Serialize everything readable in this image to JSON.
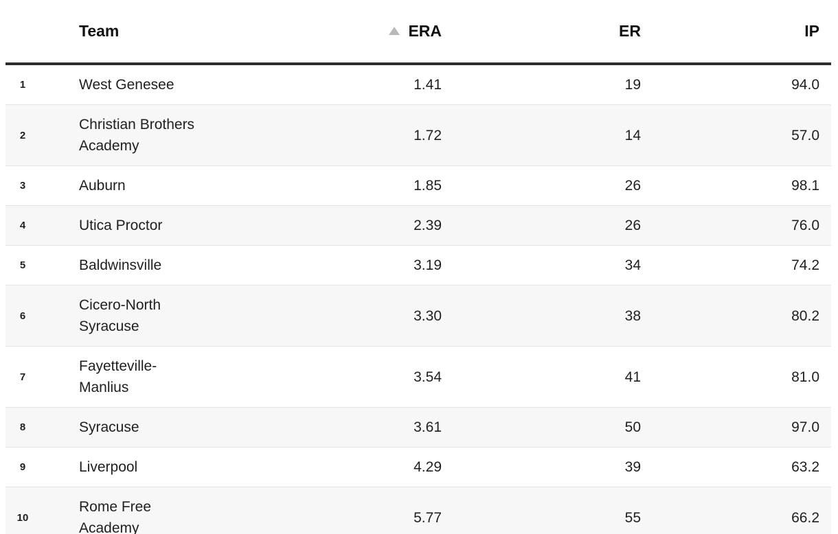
{
  "colors": {
    "stripe": "#f7f7f7",
    "divider": "#e4e4e4",
    "header-border": "#2e2e2e",
    "text": "#1f1f1f",
    "sort-icon": "#b9b9b9",
    "bg": "#ffffff"
  },
  "table": {
    "columns": [
      {
        "key": "rank",
        "label": ""
      },
      {
        "key": "team",
        "label": "Team"
      },
      {
        "key": "era",
        "label": "ERA",
        "sorted": true,
        "sort_direction": "asc",
        "sort_icon": "triangle-up-icon"
      },
      {
        "key": "er",
        "label": "ER"
      },
      {
        "key": "ip",
        "label": "IP"
      }
    ],
    "rows": [
      {
        "rank": "1",
        "team": "West Genesee",
        "era": "1.41",
        "er": "19",
        "ip": "94.0"
      },
      {
        "rank": "2",
        "team": "Christian Brothers\nAcademy",
        "era": "1.72",
        "er": "14",
        "ip": "57.0"
      },
      {
        "rank": "3",
        "team": "Auburn",
        "era": "1.85",
        "er": "26",
        "ip": "98.1"
      },
      {
        "rank": "4",
        "team": "Utica Proctor",
        "era": "2.39",
        "er": "26",
        "ip": "76.0"
      },
      {
        "rank": "5",
        "team": "Baldwinsville",
        "era": "3.19",
        "er": "34",
        "ip": "74.2"
      },
      {
        "rank": "6",
        "team": "Cicero-North\nSyracuse",
        "era": "3.30",
        "er": "38",
        "ip": "80.2"
      },
      {
        "rank": "7",
        "team": "Fayetteville-\nManlius",
        "era": "3.54",
        "er": "41",
        "ip": "81.0"
      },
      {
        "rank": "8",
        "team": "Syracuse",
        "era": "3.61",
        "er": "50",
        "ip": "97.0"
      },
      {
        "rank": "9",
        "team": "Liverpool",
        "era": "4.29",
        "er": "39",
        "ip": "63.2"
      },
      {
        "rank": "10",
        "team": "Rome Free\nAcademy",
        "era": "5.77",
        "er": "55",
        "ip": "66.2"
      }
    ]
  }
}
